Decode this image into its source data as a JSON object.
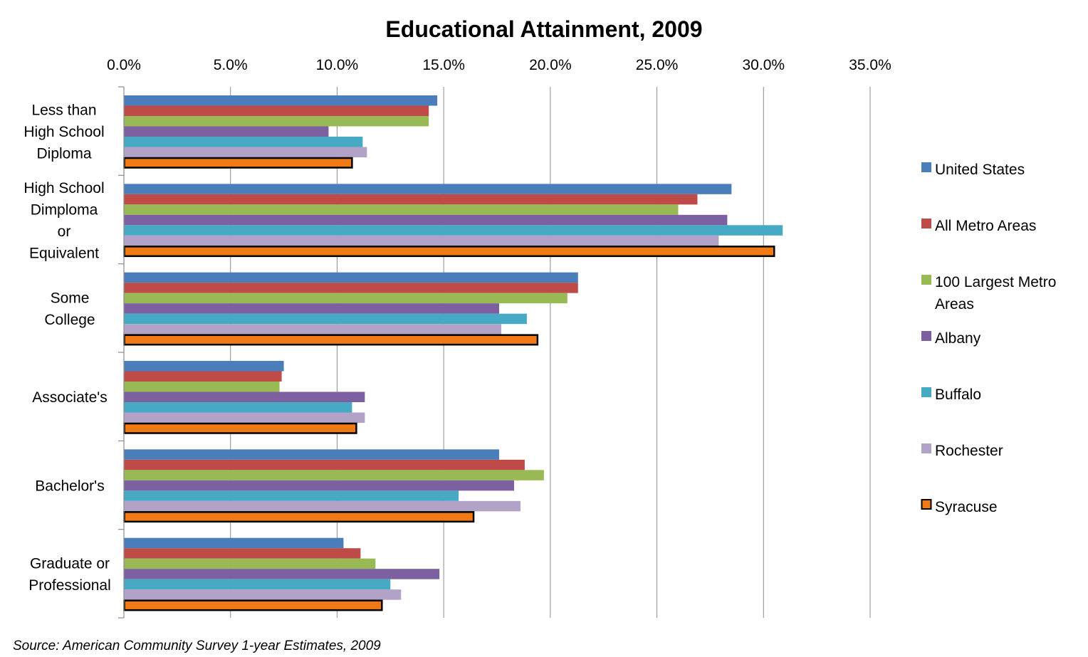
{
  "chart_data": {
    "type": "bar",
    "orientation": "horizontal",
    "title": "Educational Attainment, 2009",
    "xlabel": "",
    "ylabel": "",
    "xlim": [
      0,
      35
    ],
    "x_ticks": [
      "0.0%",
      "5.0%",
      "10.0%",
      "15.0%",
      "20.0%",
      "25.0%",
      "30.0%",
      "35.0%"
    ],
    "x_tick_values": [
      0,
      5,
      10,
      15,
      20,
      25,
      30,
      35
    ],
    "grid": "vertical",
    "legend_position": "right",
    "categories": [
      [
        "Less than",
        "High School",
        "Diploma"
      ],
      [
        "High School",
        "Dimploma",
        "or",
        "Equivalent"
      ],
      [
        "Some",
        "College"
      ],
      [
        "Associate's"
      ],
      [
        "Bachelor's"
      ],
      [
        "Graduate or",
        "Professional"
      ]
    ],
    "series": [
      {
        "name": "United States",
        "legend_lines": [
          "United States"
        ],
        "color": "#4a7ebb",
        "values": [
          14.7,
          28.5,
          21.3,
          7.5,
          17.6,
          10.3
        ]
      },
      {
        "name": "All Metro Areas",
        "legend_lines": [
          "All Metro Areas"
        ],
        "color": "#be4b48",
        "values": [
          14.3,
          26.9,
          21.3,
          7.4,
          18.8,
          11.1
        ]
      },
      {
        "name": "100 Largest Metro Areas",
        "legend_lines": [
          "100 Largest Metro",
          "Areas"
        ],
        "color": "#98b954",
        "values": [
          14.3,
          26.0,
          20.8,
          7.3,
          19.7,
          11.8
        ]
      },
      {
        "name": "Albany",
        "legend_lines": [
          "Albany"
        ],
        "color": "#7d60a0",
        "values": [
          9.6,
          28.3,
          17.6,
          11.3,
          18.3,
          14.8
        ]
      },
      {
        "name": "Buffalo",
        "legend_lines": [
          "Buffalo"
        ],
        "color": "#46aac5",
        "values": [
          11.2,
          30.9,
          18.9,
          10.7,
          15.7,
          12.5
        ]
      },
      {
        "name": "Rochester",
        "legend_lines": [
          "Rochester"
        ],
        "color": "#b3a2c7",
        "values": [
          11.4,
          27.9,
          17.7,
          11.3,
          18.6,
          13.0
        ]
      },
      {
        "name": "Syracuse",
        "legend_lines": [
          "Syracuse"
        ],
        "color": "#f17a14",
        "outline": "#000000",
        "values": [
          10.7,
          30.5,
          19.4,
          10.9,
          16.4,
          12.1
        ]
      }
    ]
  },
  "source": "Source: American Community Survey 1-year Estimates, 2009"
}
